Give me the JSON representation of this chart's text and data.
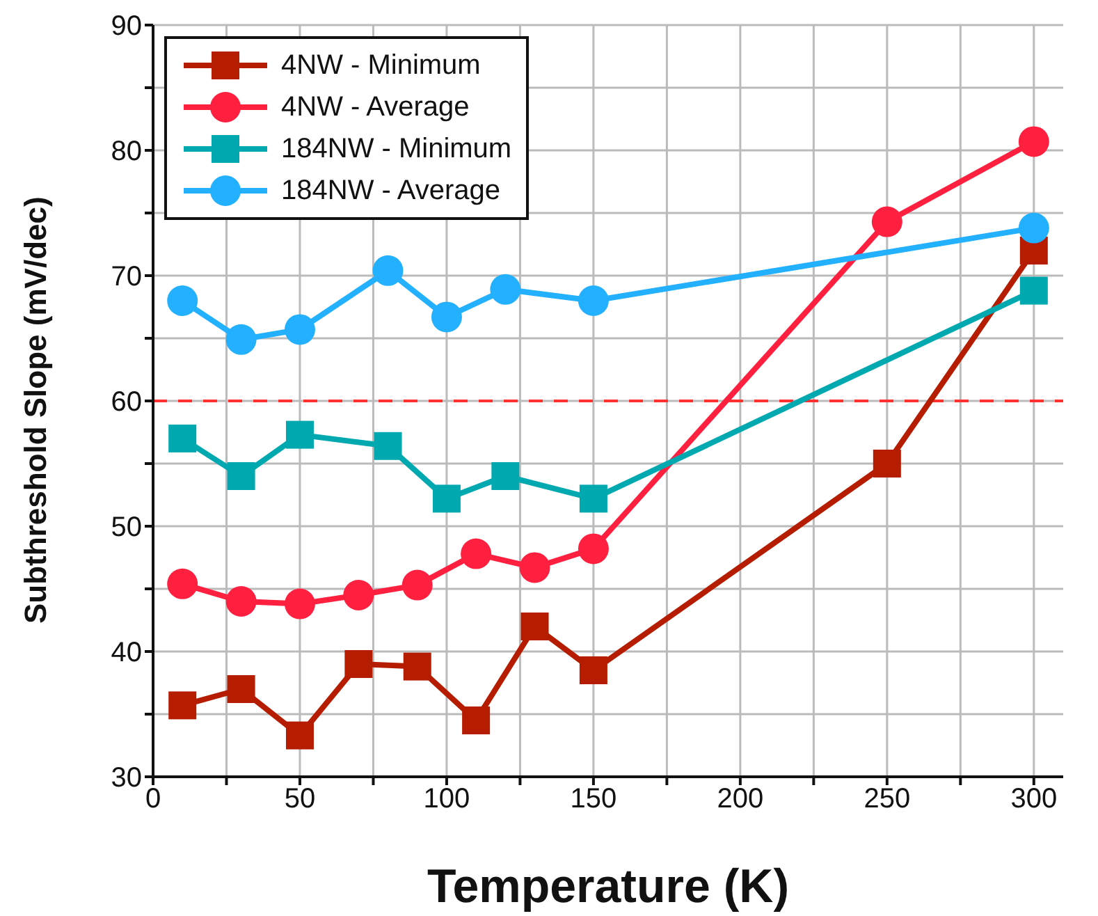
{
  "chart_data": {
    "type": "line",
    "xlabel": "Temperature (K)",
    "ylabel": "Subthreshold Slope (mV/dec)",
    "xlim": [
      0,
      310
    ],
    "ylim": [
      30,
      90
    ],
    "xticks": [
      0,
      {
        "value": 25,
        "label": null
      },
      50,
      {
        "value": 75,
        "label": null
      },
      100,
      {
        "value": 125,
        "label": null
      },
      150,
      {
        "value": 175,
        "label": null
      },
      200,
      {
        "value": 225,
        "label": null
      },
      250,
      {
        "value": 275,
        "label": null
      },
      300
    ],
    "yticks": [
      30,
      {
        "value": 35,
        "label": null
      },
      40,
      {
        "value": 45,
        "label": null
      },
      50,
      {
        "value": 55,
        "label": null
      },
      60,
      {
        "value": 65,
        "label": null
      },
      70,
      {
        "value": 75,
        "label": null
      },
      80,
      {
        "value": 85,
        "label": null
      },
      90
    ],
    "grid": true,
    "legend": "top left",
    "line_style": "solid",
    "ref_lines": [
      {
        "axis": "y",
        "value": 60,
        "label": null,
        "color": "#ff3030",
        "line_style": "dashed"
      }
    ],
    "series": [
      {
        "name": "4NW - Minimum",
        "color": "#b51c00",
        "marker": "square",
        "x": [
          10,
          30,
          50,
          70,
          90,
          110,
          130,
          150,
          250,
          300
        ],
        "values": [
          35.7,
          37,
          33.3,
          39,
          38.8,
          34.5,
          42,
          38.5,
          55,
          72
        ]
      },
      {
        "name": "4NW - Average",
        "color": "#ff2040",
        "marker": "circle",
        "x": [
          10,
          30,
          50,
          70,
          90,
          110,
          130,
          150,
          250,
          300
        ],
        "values": [
          45.4,
          44,
          43.8,
          44.5,
          45.3,
          47.8,
          46.7,
          48.2,
          74.3,
          80.7
        ]
      },
      {
        "name": "184NW - Minimum",
        "color": "#00a8b0",
        "marker": "square",
        "x": [
          10,
          30,
          50,
          80,
          100,
          120,
          150,
          300
        ],
        "values": [
          57,
          54,
          57.3,
          56.4,
          52.2,
          54,
          52.2,
          68.8
        ]
      },
      {
        "name": "184NW - Average",
        "color": "#22b0ff",
        "marker": "circle",
        "x": [
          10,
          30,
          50,
          80,
          100,
          120,
          150,
          300
        ],
        "values": [
          68,
          64.9,
          65.7,
          70.4,
          66.7,
          68.9,
          68,
          73.8
        ]
      }
    ]
  }
}
